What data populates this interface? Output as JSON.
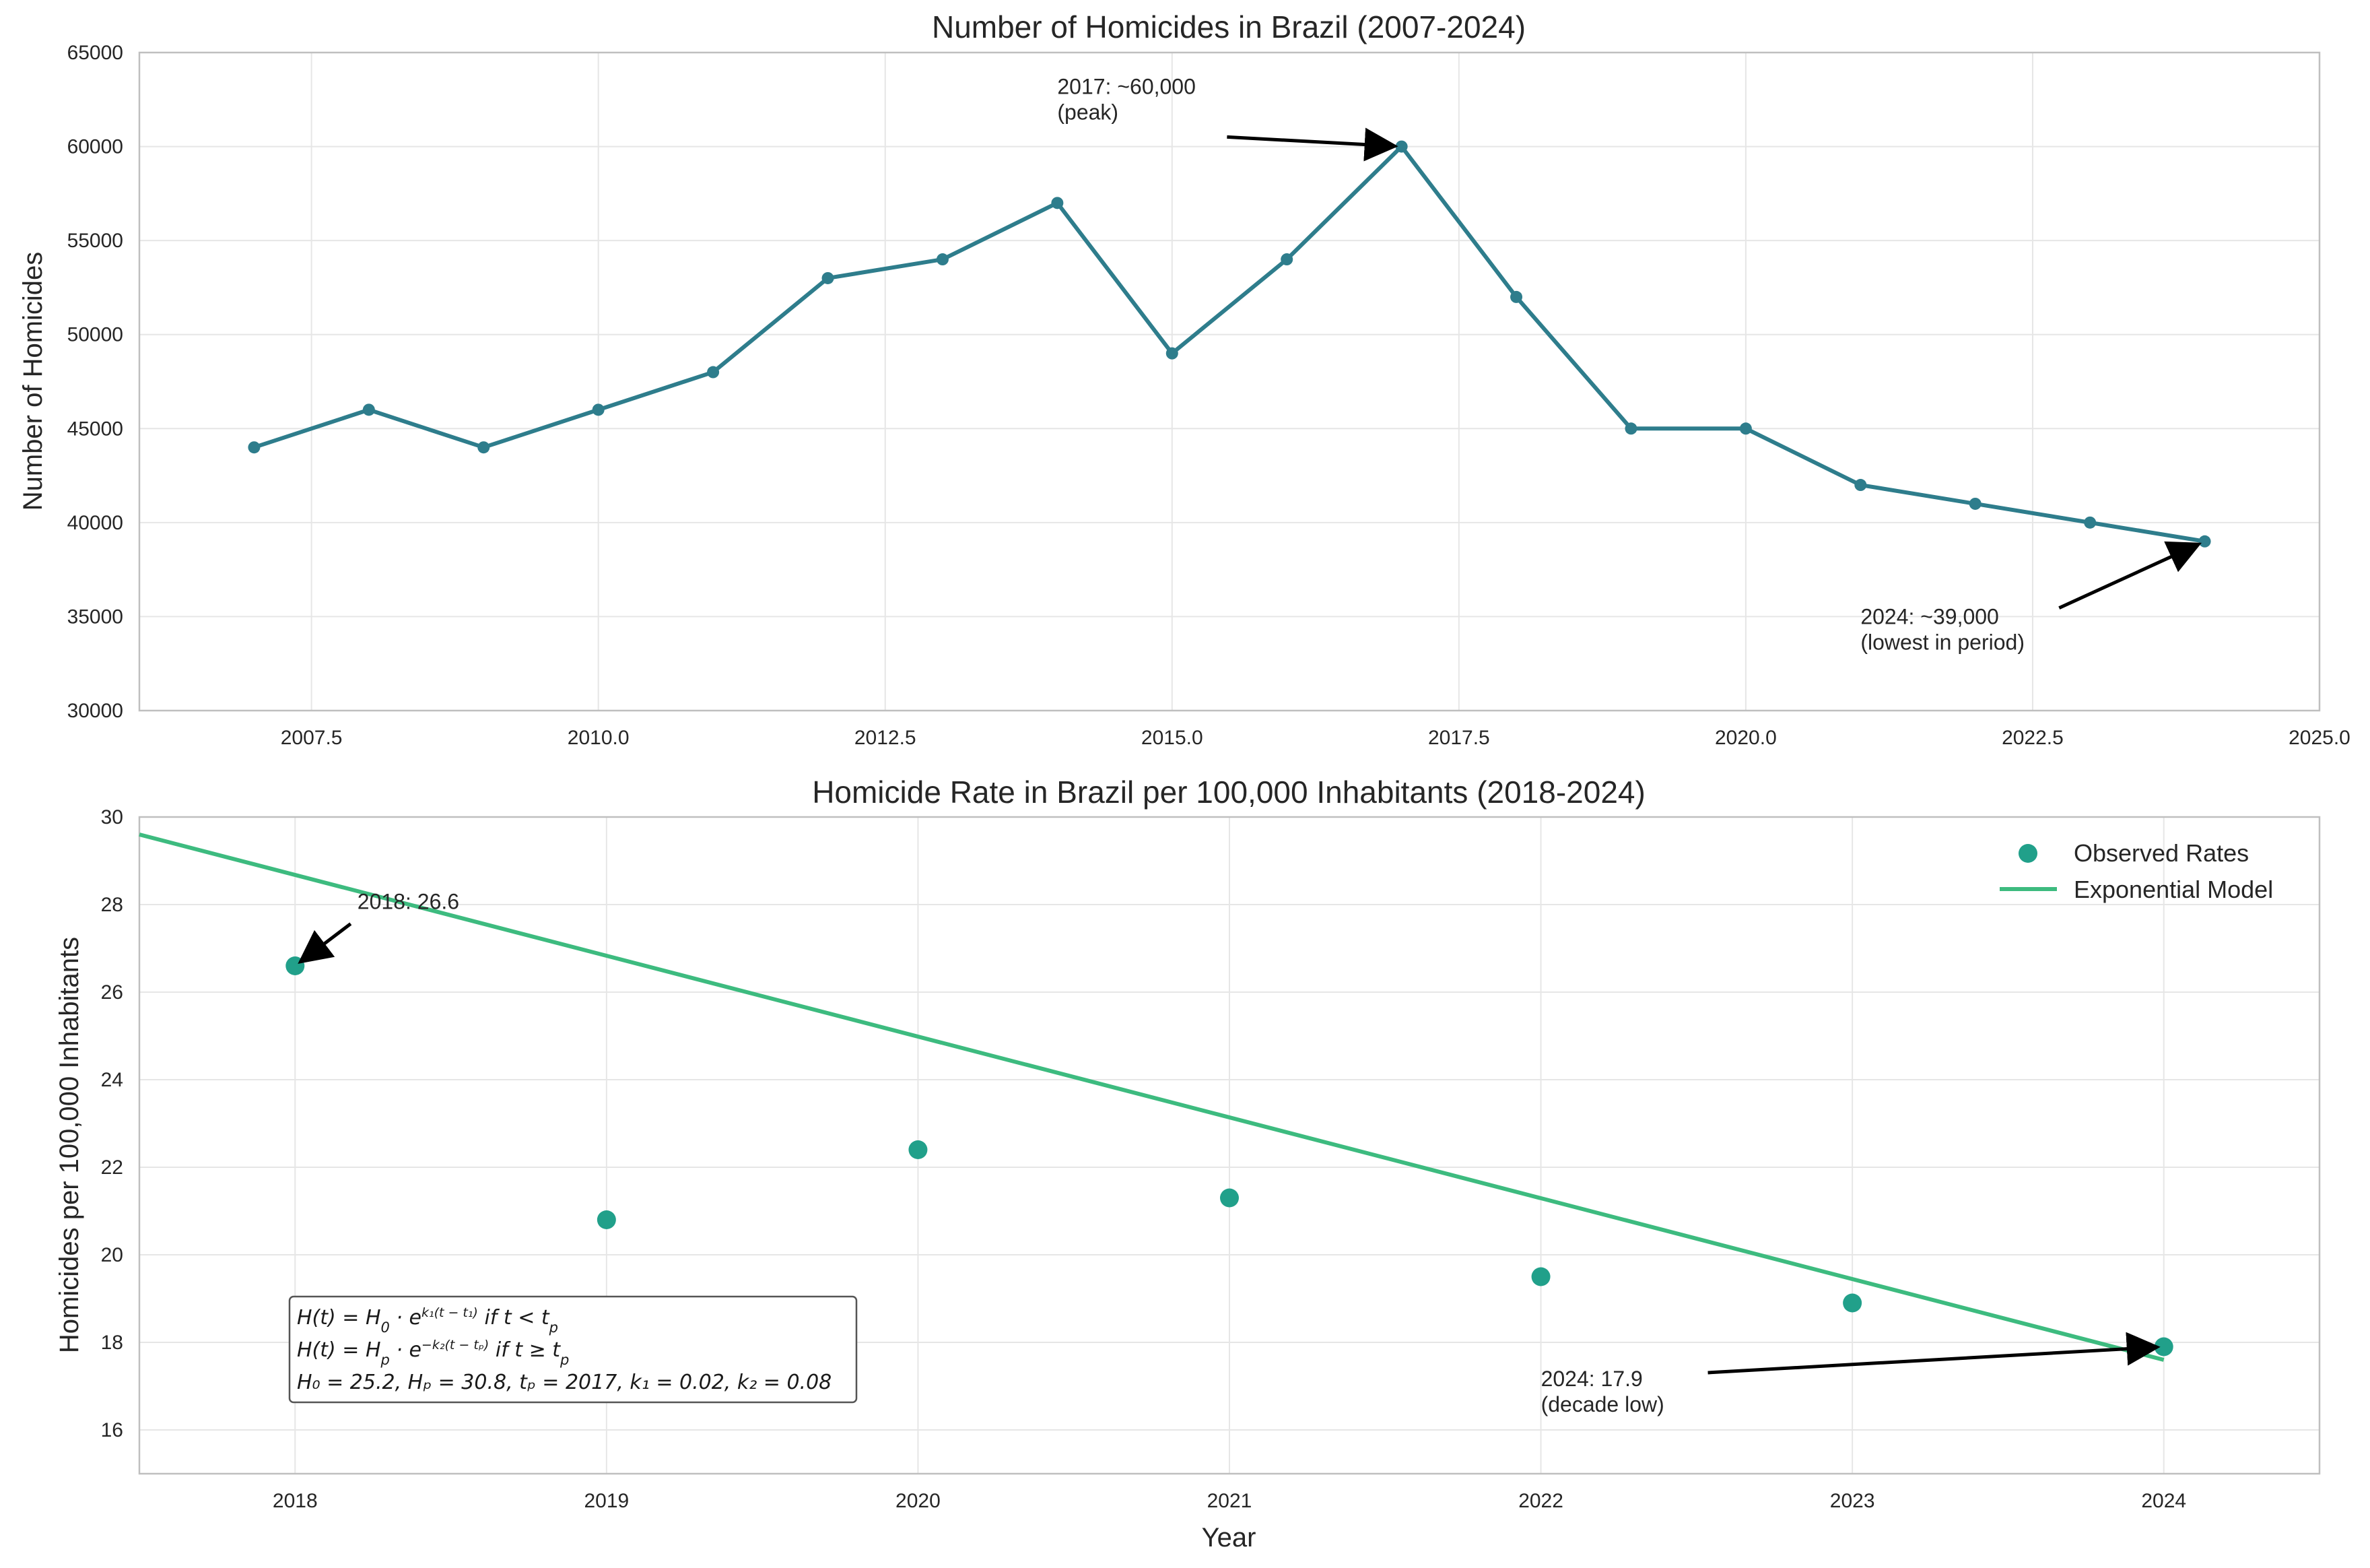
{
  "chart_data": [
    {
      "type": "line",
      "title": "Number of Homicides in Brazil (2007-2024)",
      "xlabel": "",
      "ylabel": "Number of Homicides",
      "x": [
        2007,
        2008,
        2009,
        2010,
        2011,
        2012,
        2013,
        2014,
        2015,
        2016,
        2017,
        2018,
        2019,
        2020,
        2021,
        2022,
        2023,
        2024
      ],
      "values": [
        44000,
        46000,
        44000,
        46000,
        48000,
        53000,
        54000,
        57000,
        49000,
        54000,
        60000,
        52000,
        45000,
        45000,
        42000,
        41000,
        40000,
        39000
      ],
      "xlim": [
        2006,
        2025
      ],
      "ylim": [
        30000,
        65000
      ],
      "xticks": [
        "2007.5",
        "2010.0",
        "2012.5",
        "2015.0",
        "2017.5",
        "2020.0",
        "2022.5",
        "2025.0"
      ],
      "xtick_values": [
        2007.5,
        2010,
        2012.5,
        2015,
        2017.5,
        2020,
        2022.5,
        2025
      ],
      "yticks": [
        "30000",
        "35000",
        "40000",
        "45000",
        "50000",
        "55000",
        "60000",
        "65000"
      ],
      "ytick_values": [
        30000,
        35000,
        40000,
        45000,
        50000,
        55000,
        60000,
        65000
      ],
      "line_color": "#2e7d8c",
      "grid": true,
      "annotations": [
        {
          "lines": [
            "2017: ~60,000",
            "(peak)"
          ],
          "point": [
            2017,
            60000
          ],
          "text_pos": [
            2014,
            62800
          ]
        },
        {
          "lines": [
            "2024: ~39,000",
            "(lowest in period)"
          ],
          "point": [
            2024,
            39000
          ],
          "text_pos": [
            2021,
            34600
          ]
        }
      ]
    },
    {
      "type": "scatter",
      "title": "Homicide Rate in Brazil per 100,000 Inhabitants (2018-2024)",
      "xlabel": "Year",
      "ylabel": "Homicides per 100,000 Inhabitants",
      "x": [
        2018,
        2019,
        2020,
        2021,
        2022,
        2023,
        2024
      ],
      "series": [
        {
          "name": "Observed Rates",
          "kind": "scatter",
          "color": "#21a08a",
          "values": [
            26.6,
            20.8,
            22.4,
            21.3,
            19.5,
            18.9,
            17.9
          ]
        },
        {
          "name": "Exponential Model",
          "kind": "line",
          "color": "#3dbb7f",
          "x": [
            2017.5,
            2024
          ],
          "values": [
            29.6,
            17.6
          ]
        }
      ],
      "xlim": [
        2017.5,
        2024.5
      ],
      "ylim": [
        15,
        30
      ],
      "xticks": [
        "2018",
        "2019",
        "2020",
        "2021",
        "2022",
        "2023",
        "2024"
      ],
      "xtick_values": [
        2018,
        2019,
        2020,
        2021,
        2022,
        2023,
        2024
      ],
      "yticks": [
        "16",
        "18",
        "20",
        "22",
        "24",
        "26",
        "28",
        "30"
      ],
      "ytick_values": [
        16,
        18,
        20,
        22,
        24,
        26,
        28,
        30
      ],
      "legend_position": "top-right",
      "grid": true,
      "annotations": [
        {
          "lines": [
            "2018: 26.6"
          ],
          "point": [
            2018,
            26.6
          ],
          "text_pos": [
            2018.2,
            27.9
          ]
        },
        {
          "lines": [
            "2024: 17.9",
            "(decade low)"
          ],
          "point": [
            2024,
            17.9
          ],
          "text_pos": [
            2022,
            17.0
          ]
        }
      ],
      "formula_box": {
        "line1": {
          "prefix": "H(t) = H",
          "sub0": "0",
          "mid": " · e",
          "sup": "k₁(t − t₁)",
          "suffix": " if t < t",
          "subEnd": "p"
        },
        "line2": {
          "prefix": "H(t) = H",
          "sub0": "p",
          "mid": " · e",
          "sup": "−k₂(t − tₚ)",
          "suffix": " if t ≥ t",
          "subEnd": "p"
        },
        "line3": "H₀ = 25.2, Hₚ = 30.8, tₚ = 2017, k₁ = 0.02, k₂ = 0.08"
      }
    }
  ]
}
